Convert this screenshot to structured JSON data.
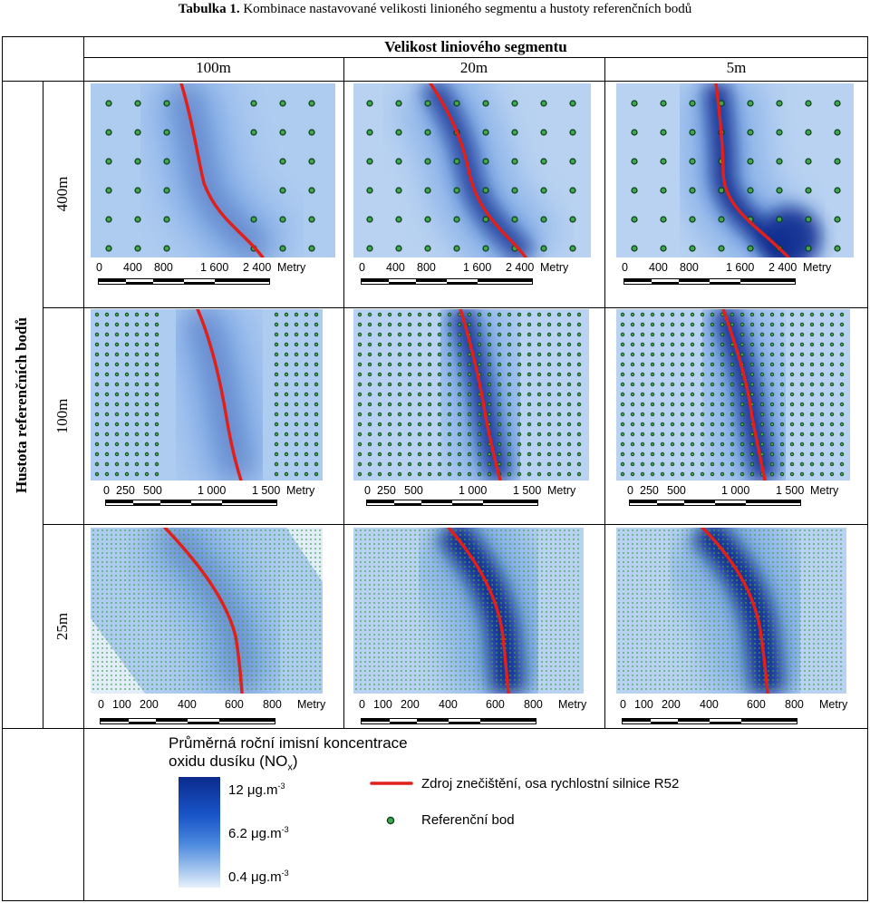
{
  "caption": {
    "bold": "Tabulka 1.",
    "text": " Kombinace nastavované velikosti linioného segmentu a hustoty referenčních bodů"
  },
  "header": {
    "title": "Velikost liniového segmentu",
    "columns": [
      "100m",
      "20m",
      "5m"
    ]
  },
  "side": {
    "title": "Hustota referenčních bodů",
    "rows": [
      "400m",
      "100m",
      "25m"
    ]
  },
  "scales": {
    "row400": {
      "ticks": [
        "0",
        "400",
        "800",
        "1 600",
        "2 400"
      ],
      "unit": "Metry"
    },
    "row100": {
      "ticks": [
        "0",
        "250",
        "500",
        "1 000",
        "1 500"
      ],
      "unit": "Metry"
    },
    "row25": {
      "ticks": [
        "0",
        "100",
        "200",
        "400",
        "600",
        "800"
      ],
      "unit": "Metry"
    }
  },
  "legend": {
    "title_line1": "Průměrná roční imisní koncentrace",
    "title_line2": "oxidu dusíku (NO",
    "title_sub": "x",
    "title_end": ")",
    "ramp_labels": [
      {
        "value": "12 μg.m",
        "exp": "-3"
      },
      {
        "value": "6.2 μg.m",
        "exp": "-3"
      },
      {
        "value": "0.4 μg.m",
        "exp": "-3"
      }
    ],
    "line_label": "Zdroj znečištění, osa rychlostní silnice R52",
    "point_label": "Referenční bod"
  },
  "colors": {
    "road": "#e0201a",
    "point_fill": "#3fa64a",
    "point_stroke": "#0a3d1a",
    "high": "#0a2a8e",
    "low": "#e8f1fb"
  }
}
